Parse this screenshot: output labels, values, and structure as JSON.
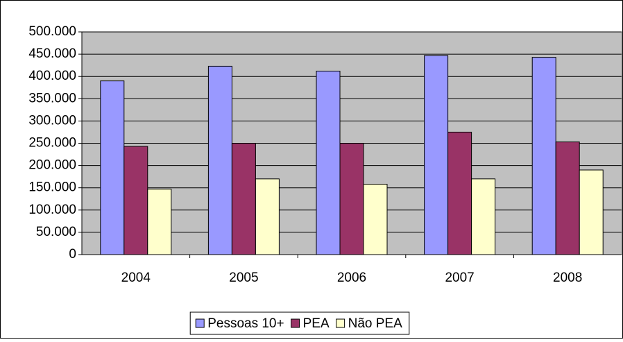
{
  "chart_data": {
    "type": "bar",
    "categories": [
      "2004",
      "2005",
      "2006",
      "2007",
      "2008"
    ],
    "series": [
      {
        "name": "Pessoas 10+",
        "color": "#9999ff",
        "values": [
          390000,
          423000,
          412000,
          447000,
          443000
        ]
      },
      {
        "name": "PEA",
        "color": "#993366",
        "values": [
          243000,
          250000,
          250000,
          275000,
          253000
        ]
      },
      {
        "name": "Não PEA",
        "color": "#ffffcc",
        "values": [
          147000,
          170000,
          158000,
          170000,
          190000
        ]
      }
    ],
    "ylim": [
      0,
      500000
    ],
    "yticks": [
      0,
      {
        "value": 50000,
        "label": "50.000"
      },
      {
        "value": 100000,
        "label": "100.000"
      },
      {
        "value": 150000,
        "label": "150.000"
      },
      {
        "value": 200000,
        "label": "200.000"
      },
      {
        "value": 250000,
        "label": "250.000"
      },
      {
        "value": 300000,
        "label": "300.000"
      },
      {
        "value": 350000,
        "label": "350.000"
      },
      {
        "value": 400000,
        "label": "400.000"
      },
      {
        "value": 450000,
        "label": "450.000"
      },
      {
        "value": 500000,
        "label": "500.000"
      }
    ],
    "grid": true,
    "legend": "bottom"
  }
}
